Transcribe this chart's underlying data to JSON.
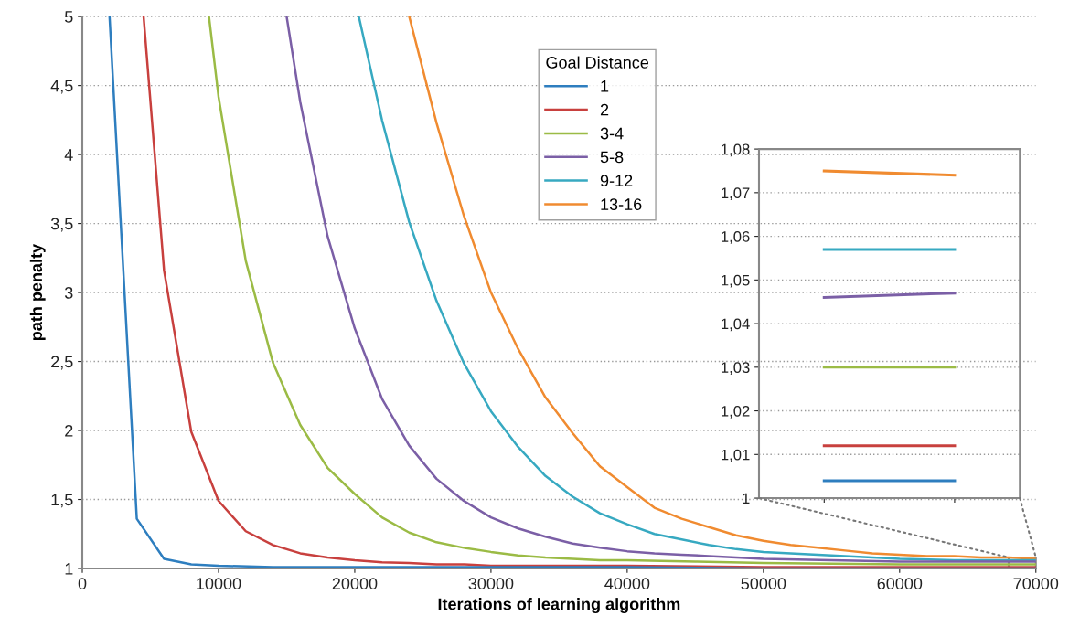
{
  "chart_data": [
    {
      "type": "line",
      "xlabel": "Iterations of learning algorithm",
      "ylabel": "path penalty",
      "legend_title": "Goal Distance",
      "legend": "top right",
      "grid": "y",
      "marker": "none",
      "line_style": "solid",
      "xlim": [
        0,
        70000
      ],
      "xticks": [
        0,
        10000,
        20000,
        30000,
        40000,
        50000,
        60000,
        70000
      ],
      "ylim": [
        1,
        5
      ],
      "yticks": [
        1,
        {
          "value": 1.5,
          "label": "1,5"
        },
        2,
        {
          "value": 2.5,
          "label": "2,5"
        },
        3,
        {
          "value": 3.5,
          "label": "3,5"
        },
        4,
        {
          "value": 4.5,
          "label": "4,5"
        },
        5
      ],
      "series": [
        {
          "name": "1",
          "color": "#2e7ebf",
          "x": [
            2000,
            4000,
            6000,
            8000,
            10000,
            14000,
            20000,
            30000,
            40000,
            50000,
            60000,
            68000,
            70000
          ],
          "values": [
            5,
            1.36,
            1.07,
            1.03,
            1.02,
            1.01,
            1.01,
            1.01,
            1.01,
            1.0,
            1.0,
            1.0,
            1.0
          ]
        },
        {
          "name": "2",
          "color": "#c8403e",
          "x": [
            4500,
            6000,
            8000,
            10000,
            12000,
            14000,
            16000,
            18000,
            20000,
            22000,
            24000,
            26000,
            28000,
            30000,
            35000,
            40000,
            50000,
            60000,
            68000,
            70000
          ],
          "values": [
            5,
            3.16,
            1.99,
            1.49,
            1.27,
            1.17,
            1.11,
            1.08,
            1.06,
            1.045,
            1.04,
            1.03,
            1.03,
            1.02,
            1.02,
            1.02,
            1.01,
            1.01,
            1.01,
            1.01
          ]
        },
        {
          "name": "3-4",
          "color": "#9bbb45",
          "x": [
            9300,
            10000,
            12000,
            14000,
            16000,
            18000,
            20000,
            22000,
            24000,
            26000,
            28000,
            30000,
            32000,
            34000,
            36000,
            38000,
            40000,
            45000,
            50000,
            60000,
            68000,
            70000
          ],
          "values": [
            5,
            4.42,
            3.23,
            2.49,
            2.04,
            1.73,
            1.54,
            1.37,
            1.26,
            1.19,
            1.15,
            1.12,
            1.095,
            1.08,
            1.07,
            1.06,
            1.06,
            1.05,
            1.04,
            1.03,
            1.03,
            1.03
          ]
        },
        {
          "name": "5-8",
          "color": "#7b5fa6",
          "x": [
            15000,
            16000,
            18000,
            20000,
            22000,
            24000,
            26000,
            28000,
            30000,
            32000,
            34000,
            36000,
            38000,
            40000,
            42000,
            44000,
            46000,
            48000,
            50000,
            55000,
            60000,
            68000,
            70000
          ],
          "values": [
            5,
            4.38,
            3.41,
            2.74,
            2.23,
            1.89,
            1.65,
            1.49,
            1.37,
            1.29,
            1.23,
            1.18,
            1.15,
            1.125,
            1.11,
            1.1,
            1.09,
            1.08,
            1.07,
            1.06,
            1.05,
            1.05,
            1.05
          ]
        },
        {
          "name": "9-12",
          "color": "#37a9c1",
          "x": [
            20300,
            22000,
            24000,
            26000,
            28000,
            30000,
            32000,
            34000,
            36000,
            38000,
            40000,
            42000,
            44000,
            46000,
            48000,
            50000,
            52000,
            54000,
            56000,
            58000,
            60000,
            64000,
            68000,
            70000
          ],
          "values": [
            5,
            4.25,
            3.51,
            2.94,
            2.49,
            2.14,
            1.88,
            1.67,
            1.52,
            1.4,
            1.32,
            1.25,
            1.21,
            1.17,
            1.14,
            1.12,
            1.11,
            1.1,
            1.09,
            1.08,
            1.07,
            1.06,
            1.06,
            1.06
          ]
        },
        {
          "name": "13-16",
          "color": "#f08b30",
          "x": [
            24000,
            26000,
            28000,
            30000,
            32000,
            34000,
            36000,
            38000,
            40000,
            42000,
            44000,
            46000,
            48000,
            50000,
            52000,
            54000,
            56000,
            58000,
            60000,
            62000,
            64000,
            66000,
            68000,
            70000
          ],
          "values": [
            5,
            4.23,
            3.56,
            3.0,
            2.59,
            2.24,
            1.98,
            1.74,
            1.59,
            1.44,
            1.36,
            1.3,
            1.24,
            1.2,
            1.17,
            1.15,
            1.13,
            1.11,
            1.1,
            1.09,
            1.09,
            1.08,
            1.08,
            1.07
          ]
        }
      ]
    },
    {
      "type": "line",
      "grid": "y",
      "marker": "none",
      "line_style": "solid",
      "tick_labels": "y",
      "categories": [
        null,
        null
      ],
      "ylim": [
        1,
        1.08
      ],
      "yticks": [
        1,
        {
          "value": 1.01,
          "label": "1,01"
        },
        {
          "value": 1.02,
          "label": "1,02"
        },
        {
          "value": 1.03,
          "label": "1,03"
        },
        {
          "value": 1.04,
          "label": "1,04"
        },
        {
          "value": 1.05,
          "label": "1,05"
        },
        {
          "value": 1.06,
          "label": "1,06"
        },
        {
          "value": 1.07,
          "label": "1,07"
        },
        {
          "value": 1.08,
          "label": "1,08"
        }
      ],
      "series": [
        {
          "color": "#2e7ebf",
          "values": [
            1.004,
            1.004
          ]
        },
        {
          "color": "#c8403e",
          "values": [
            1.012,
            1.012
          ]
        },
        {
          "color": "#9bbb45",
          "values": [
            1.03,
            1.03
          ]
        },
        {
          "color": "#7b5fa6",
          "values": [
            1.046,
            1.047
          ]
        },
        {
          "color": "#37a9c1",
          "values": [
            1.057,
            1.057
          ]
        },
        {
          "color": "#f08b30",
          "values": [
            1.075,
            1.074
          ]
        }
      ]
    }
  ]
}
